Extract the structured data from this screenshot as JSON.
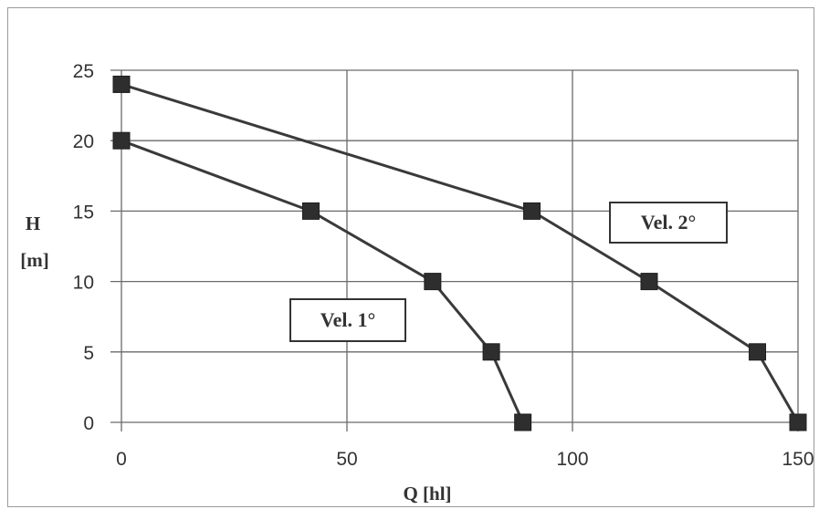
{
  "chart_data": {
    "type": "line",
    "ylabel": [
      "H",
      "[m]"
    ],
    "xlabel": "Q [hl]",
    "xlim": [
      0,
      150
    ],
    "ylim": [
      0,
      25
    ],
    "x_ticks": [
      "0",
      "50",
      "100",
      "150"
    ],
    "y_ticks": [
      "0",
      "5",
      "10",
      "15",
      "20",
      "25"
    ],
    "grid": true,
    "series": [
      {
        "name": "Vel. 1°",
        "points": [
          [
            0,
            20
          ],
          [
            42,
            15
          ],
          [
            69,
            10
          ],
          [
            82,
            5
          ],
          [
            89,
            0
          ]
        ],
        "color": "#3a3a3a"
      },
      {
        "name": "Vel. 2°",
        "points": [
          [
            0,
            24
          ],
          [
            91,
            15
          ],
          [
            117,
            10
          ],
          [
            141,
            5
          ],
          [
            150,
            0
          ]
        ],
        "color": "#3a3a3a"
      }
    ],
    "annotations": [
      "Vel. 1°",
      "Vel. 2°"
    ]
  },
  "colors": {
    "grid": "#6a6a6a",
    "line": "#3a3a3a",
    "marker": "#2e2e2e",
    "frame": "#9a9a9a"
  }
}
